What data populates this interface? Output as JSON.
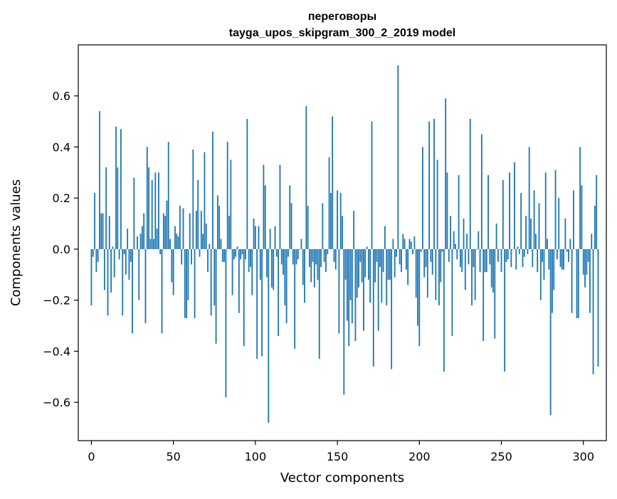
{
  "chart_data": {
    "type": "bar",
    "title": "переговоры",
    "subtitle": "tayga_upos_skipgram_300_2_2019 model",
    "xlabel": "Vector components",
    "ylabel": "Components values",
    "xlim": [
      -8,
      314
    ],
    "ylim": [
      -0.75,
      0.8
    ],
    "grid": false,
    "legend": "none",
    "bar_color": "#1f77b4",
    "x_ticks": [
      0,
      50,
      100,
      150,
      200,
      250,
      300
    ],
    "y_ticks": [
      -0.6,
      -0.4,
      -0.2,
      0.0,
      0.2,
      0.4,
      0.6
    ],
    "x_tick_labels": [
      "0",
      "50",
      "100",
      "150",
      "200",
      "250",
      "300"
    ],
    "y_tick_labels": [
      "−0.6",
      "−0.4",
      "−0.2",
      "0.0",
      "0.2",
      "0.4",
      "0.6"
    ],
    "values": [
      -0.22,
      -0.03,
      0.22,
      -0.09,
      -0.05,
      0.54,
      0.14,
      0.14,
      -0.16,
      0.32,
      -0.26,
      0.13,
      -0.17,
      0.01,
      -0.11,
      0.48,
      0.32,
      -0.04,
      0.47,
      -0.26,
      -0.02,
      -0.1,
      0.08,
      -0.12,
      -0.05,
      -0.33,
      0.28,
      0.0,
      0.05,
      -0.2,
      0.06,
      0.09,
      0.14,
      -0.29,
      0.4,
      0.32,
      0.04,
      0.27,
      0.04,
      0.3,
      0.08,
      0.3,
      -0.02,
      -0.33,
      0.14,
      0.13,
      0.19,
      0.42,
      0.04,
      -0.13,
      -0.18,
      0.09,
      0.06,
      0.05,
      0.17,
      -0.06,
      0.16,
      -0.27,
      -0.27,
      -0.2,
      0.14,
      -0.06,
      0.39,
      -0.27,
      0.15,
      0.27,
      -0.03,
      0.15,
      0.06,
      0.38,
      0.1,
      -0.09,
      0.02,
      -0.26,
      0.46,
      -0.22,
      -0.37,
      0.21,
      0.17,
      0.04,
      -0.05,
      -0.05,
      -0.58,
      0.42,
      0.13,
      0.35,
      -0.18,
      -0.04,
      -0.03,
      0.01,
      -0.25,
      -0.04,
      -0.02,
      -0.38,
      -0.04,
      0.51,
      -0.09,
      -0.07,
      -0.18,
      0.12,
      0.09,
      -0.43,
      0.09,
      -0.12,
      -0.42,
      0.33,
      0.25,
      -0.11,
      -0.68,
      0.08,
      -0.15,
      -0.16,
      0.09,
      -0.03,
      -0.34,
      0.33,
      -0.06,
      -0.1,
      -0.22,
      -0.29,
      -0.03,
      0.25,
      0.18,
      -0.06,
      -0.39,
      -0.06,
      -0.04,
      0.0,
      0.04,
      -0.14,
      -0.21,
      0.56,
      0.17,
      -0.07,
      -0.13,
      -0.05,
      -0.15,
      -0.06,
      -0.12,
      -0.43,
      -0.07,
      0.18,
      -0.05,
      -0.09,
      -0.02,
      0.36,
      0.22,
      0.52,
      -0.05,
      -0.08,
      0.23,
      -0.33,
      0.22,
      0.13,
      -0.57,
      -0.12,
      -0.28,
      -0.38,
      -0.2,
      -0.29,
      0.15,
      -0.36,
      -0.19,
      -0.15,
      -0.05,
      -0.13,
      -0.32,
      -0.11,
      0.01,
      -0.12,
      -0.21,
      0.5,
      -0.46,
      -0.13,
      -0.05,
      -0.32,
      -0.07,
      -0.21,
      -0.09,
      0.09,
      -0.22,
      -0.12,
      -0.12,
      -0.47,
      0.04,
      -0.11,
      -0.03,
      0.72,
      -0.06,
      -0.09,
      0.06,
      0.04,
      -0.08,
      -0.14,
      0.04,
      0.03,
      -0.02,
      0.05,
      -0.19,
      -0.3,
      -0.38,
      -0.01,
      0.4,
      -0.11,
      -0.07,
      -0.19,
      0.5,
      -0.05,
      -0.1,
      0.51,
      -0.2,
      0.35,
      -0.22,
      -0.13,
      -0.01,
      -0.48,
      0.59,
      0.3,
      -0.05,
      0.13,
      -0.34,
      0.07,
      0.02,
      -0.04,
      0.29,
      -0.07,
      -0.09,
      0.12,
      -0.16,
      0.06,
      -0.06,
      0.51,
      -0.22,
      -0.07,
      -0.2,
      0.0,
      0.07,
      -0.09,
      0.45,
      -0.36,
      -0.09,
      -0.09,
      0.29,
      -0.06,
      -0.15,
      -0.17,
      -0.35,
      0.1,
      -0.05,
      0.0,
      -0.09,
      0.27,
      -0.48,
      -0.05,
      -0.04,
      0.3,
      -0.07,
      0.0,
      0.34,
      -0.08,
      0.01,
      -0.02,
      0.22,
      -0.07,
      -0.03,
      0.13,
      -0.02,
      0.4,
      0.12,
      -0.07,
      0.23,
      0.06,
      -0.09,
      0.18,
      -0.2,
      -0.05,
      -0.12,
      0.3,
      0.04,
      -0.08,
      -0.65,
      -0.25,
      -0.16,
      0.31,
      -0.04,
      0.2,
      -0.07,
      -0.08,
      -0.08,
      0.12,
      -0.01,
      -0.05,
      0.04,
      -0.25,
      0.23,
      0.0,
      -0.27,
      -0.27,
      0.4,
      0.25,
      -0.1,
      -0.15,
      -0.1,
      -0.05,
      -0.25,
      0.06,
      -0.49,
      0.17,
      0.29,
      -0.46
    ]
  }
}
